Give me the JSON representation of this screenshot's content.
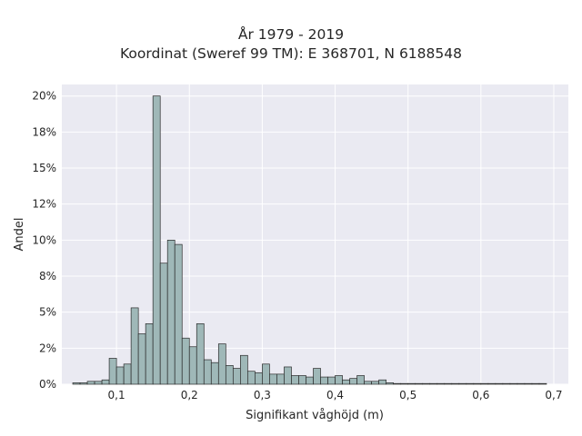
{
  "chart_data": {
    "type": "bar",
    "title": "År 1979 - 2019",
    "subtitle": "Koordinat (Sweref 99 TM): E 368701, N 6188548",
    "xlabel": "Signifikant våghöjd (m)",
    "ylabel": "Andel",
    "xlim": [
      0.025,
      0.72
    ],
    "ylim": [
      0,
      20.8
    ],
    "xticks": [
      0.1,
      0.2,
      0.3,
      0.4,
      0.5,
      0.6,
      0.7
    ],
    "xtick_labels": [
      "0,1",
      "0,2",
      "0,3",
      "0,4",
      "0,5",
      "0,6",
      "0,7"
    ],
    "yticks": [
      0,
      2.5,
      5,
      7.5,
      10,
      12.5,
      15,
      17.5,
      20
    ],
    "ytick_labels": [
      "0%",
      "2%",
      "5%",
      "8%",
      "10%",
      "12%",
      "15%",
      "18%",
      "20%"
    ],
    "grid": true,
    "bin_width": 0.01,
    "bin_starts": [
      0.04,
      0.05,
      0.06,
      0.07,
      0.08,
      0.09,
      0.1,
      0.11,
      0.12,
      0.13,
      0.14,
      0.15,
      0.16,
      0.17,
      0.18,
      0.19,
      0.2,
      0.21,
      0.22,
      0.23,
      0.24,
      0.25,
      0.26,
      0.27,
      0.28,
      0.29,
      0.3,
      0.31,
      0.32,
      0.33,
      0.34,
      0.35,
      0.36,
      0.37,
      0.38,
      0.39,
      0.4,
      0.41,
      0.42,
      0.43,
      0.44,
      0.45,
      0.46,
      0.47,
      0.48,
      0.49,
      0.5,
      0.51,
      0.52,
      0.53,
      0.54,
      0.55,
      0.56,
      0.57,
      0.58,
      0.59,
      0.6,
      0.61,
      0.62,
      0.63,
      0.64,
      0.65,
      0.66,
      0.67,
      0.68
    ],
    "values": [
      0.1,
      0.1,
      0.2,
      0.2,
      0.3,
      1.8,
      1.2,
      1.4,
      5.3,
      3.5,
      4.2,
      20.0,
      8.4,
      10.0,
      9.7,
      3.2,
      2.6,
      4.2,
      1.7,
      1.5,
      2.8,
      1.3,
      1.1,
      2.0,
      0.9,
      0.8,
      1.4,
      0.7,
      0.7,
      1.2,
      0.6,
      0.6,
      0.5,
      1.1,
      0.5,
      0.5,
      0.6,
      0.3,
      0.4,
      0.6,
      0.2,
      0.2,
      0.3,
      0.1,
      0.05,
      0.05,
      0.05,
      0.05,
      0.05,
      0.05,
      0.05,
      0.05,
      0.05,
      0.05,
      0.05,
      0.05,
      0.05,
      0.05,
      0.05,
      0.05,
      0.05,
      0.05,
      0.05,
      0.05,
      0.05
    ],
    "colors": {
      "plot_bg": "#eaeaf2",
      "grid": "#ffffff",
      "bar_fill": "#9fb8b8",
      "bar_edge": "#2b2b2b"
    }
  }
}
